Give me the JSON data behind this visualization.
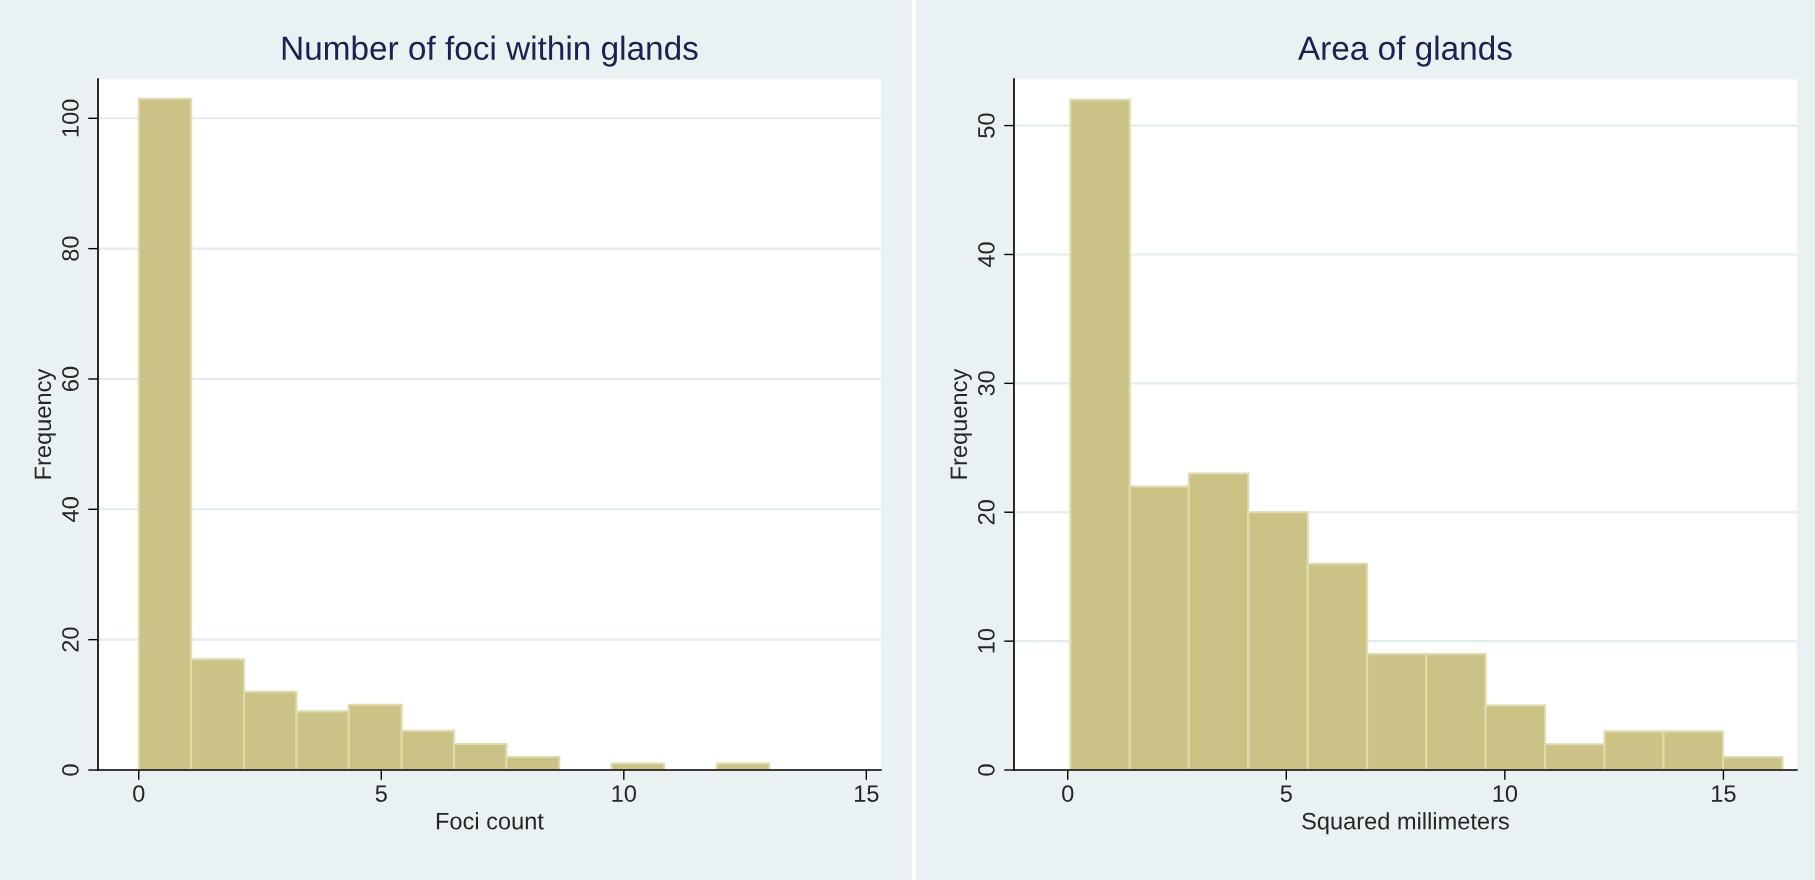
{
  "chart_data": [
    {
      "type": "histogram",
      "title": "Number of foci within glands",
      "xlabel": "Foci count",
      "ylabel": "Frequency",
      "bins": [
        0,
        1.08,
        2.17,
        3.25,
        4.33,
        5.42,
        6.5,
        7.58,
        8.67,
        9.75,
        10.83,
        11.92,
        13
      ],
      "values": [
        103,
        17,
        12,
        9,
        10,
        6,
        4,
        2,
        0,
        1,
        0,
        1
      ],
      "color": "#cbc385",
      "xlim": [
        -0.84,
        15.3
      ],
      "xticks": [
        0,
        5,
        10,
        15
      ],
      "ylim": [
        0,
        106
      ],
      "yticks": [
        0,
        20,
        40,
        60,
        80,
        100
      ],
      "grid": "y"
    },
    {
      "type": "histogram",
      "title": "Area of glands",
      "xlabel": "Squared millimeters",
      "ylabel": "Frequency",
      "bins": [
        0.06,
        1.42,
        2.77,
        4.13,
        5.49,
        6.85,
        8.2,
        9.56,
        10.92,
        12.28,
        13.63,
        14.99,
        16.35
      ],
      "values": [
        52,
        22,
        23,
        20,
        16,
        9,
        9,
        5,
        2,
        3,
        3,
        1
      ],
      "color": "#cbc385",
      "xlim": [
        -1.23,
        16.68
      ],
      "xticks": [
        0,
        5,
        10,
        15
      ],
      "ylim": [
        0,
        53.6
      ],
      "yticks": [
        0,
        10,
        20,
        30,
        40,
        50
      ],
      "grid": "y"
    }
  ]
}
